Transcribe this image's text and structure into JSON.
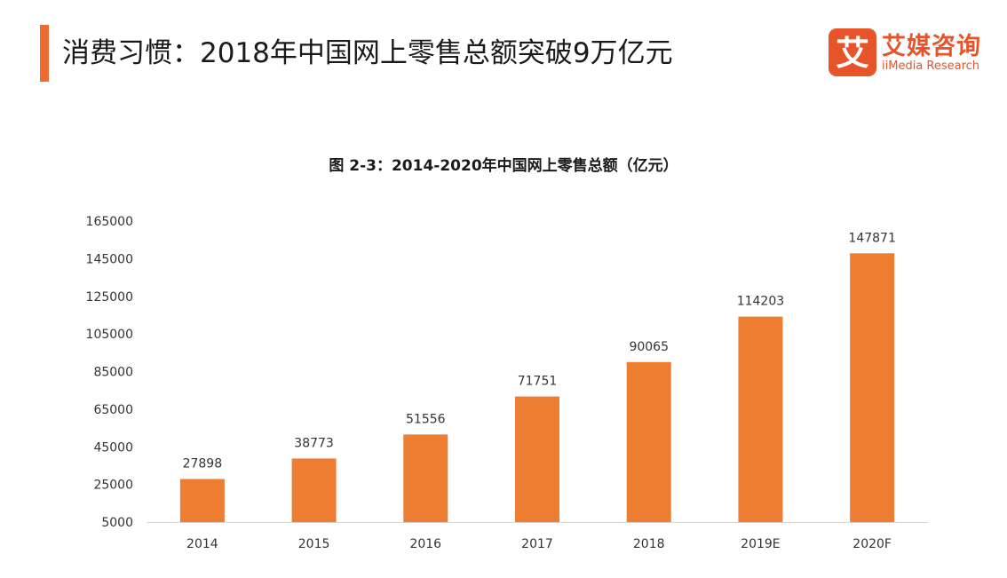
{
  "header": {
    "title": "消费习惯：2018年中国网上零售总额突破9万亿元",
    "accent_color": "#EE6A33"
  },
  "logo": {
    "mark_glyph": "艾",
    "name_cn": "艾媒咨询",
    "name_en": "iiMedia Research",
    "color": "#E8542A"
  },
  "chart_data": {
    "type": "bar",
    "title": "图 2-3：2014-2020年中国网上零售总额（亿元）",
    "categories": [
      "2014",
      "2015",
      "2016",
      "2017",
      "2018",
      "2019E",
      "2020F"
    ],
    "values": [
      27898,
      38773,
      51556,
      71751,
      90065,
      114203,
      147871
    ],
    "y_ticks": [
      5000,
      25000,
      45000,
      65000,
      85000,
      105000,
      125000,
      145000,
      165000
    ],
    "ylim": [
      5000,
      165000
    ],
    "xlabel": "",
    "ylabel": "",
    "bar_color": "#ED7D31",
    "grid": false
  }
}
